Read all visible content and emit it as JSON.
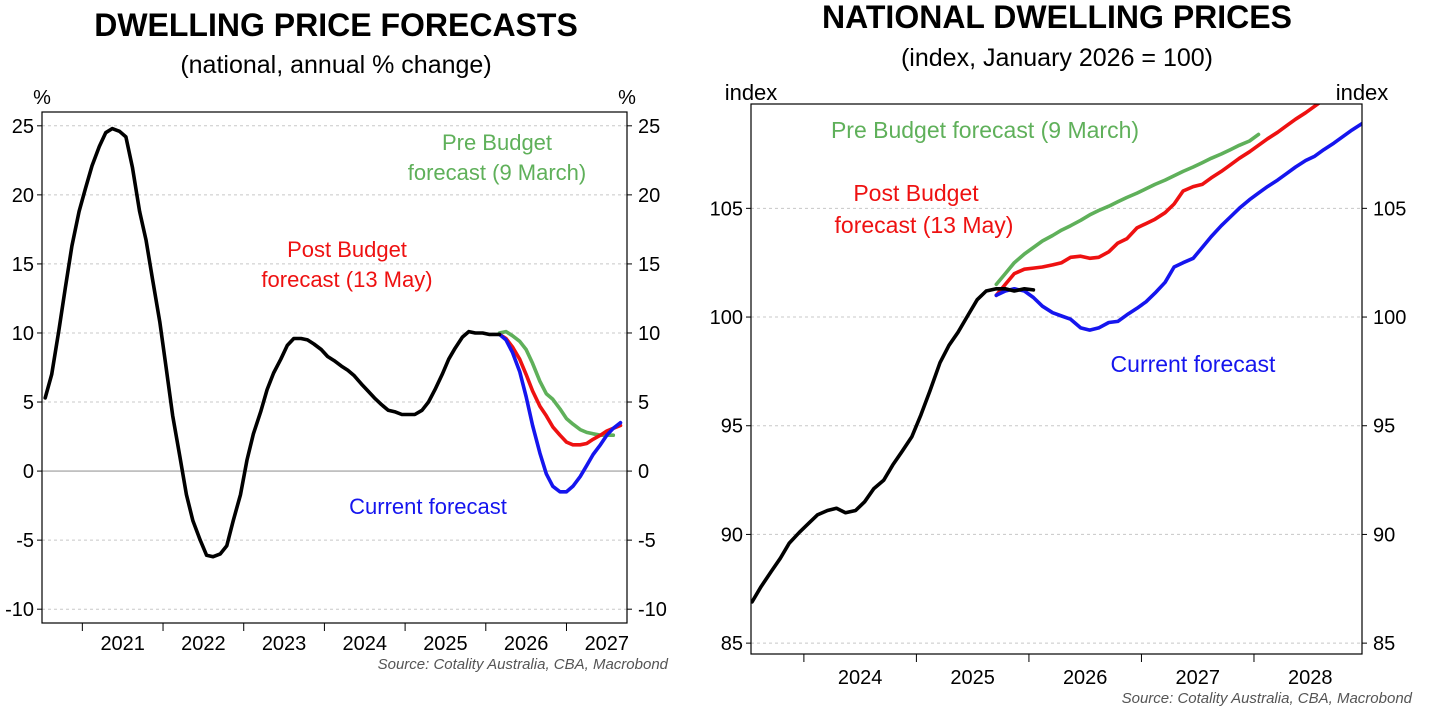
{
  "colors": {
    "black": "#000000",
    "pre_budget": "#5fb05a",
    "post_budget": "#ee1111",
    "current": "#1515ee",
    "source": "#555555"
  },
  "chart_data": [
    {
      "type": "line",
      "title": "DWELLING PRICE FORECASTS",
      "subtitle": "(national, annual % change)",
      "ylabel_left": "%",
      "ylabel_right": "%",
      "ylim": [
        -11,
        26
      ],
      "yticks": [
        -10,
        -5,
        0,
        5,
        10,
        15,
        20,
        25
      ],
      "ytick_labels": [
        "-10",
        "-5",
        "0",
        "5",
        "10",
        "15",
        "20",
        "25"
      ],
      "xlim": [
        2020.5,
        2027.75
      ],
      "xticks": [
        2021,
        2022,
        2023,
        2024,
        2025,
        2026,
        2027
      ],
      "xtick_labels": [
        "2021",
        "2022",
        "2023",
        "2024",
        "2025",
        "2026",
        "2027"
      ],
      "grid": true,
      "zero_line": true,
      "source": "Source: Cotality Australia, CBA, Macrobond",
      "annotations": {
        "pre_budget": [
          "Pre Budget",
          "forecast (9 March)"
        ],
        "post_budget": [
          "Post Budget",
          "forecast (13 May)"
        ],
        "current": [
          "Current forecast"
        ]
      },
      "series": [
        {
          "key": "pre_budget",
          "x": [
            2026.17,
            2026.25,
            2026.33,
            2026.42,
            2026.5,
            2026.58,
            2026.67,
            2026.75,
            2026.83,
            2026.92,
            2027.0,
            2027.08,
            2027.17,
            2027.25,
            2027.33,
            2027.42,
            2027.5,
            2027.58
          ],
          "y": [
            10.0,
            10.1,
            9.8,
            9.4,
            8.8,
            7.8,
            6.5,
            5.6,
            5.2,
            4.5,
            3.8,
            3.4,
            3.0,
            2.8,
            2.7,
            2.6,
            2.6,
            2.6
          ]
        },
        {
          "key": "post_budget",
          "x": [
            2026.17,
            2026.25,
            2026.33,
            2026.42,
            2026.5,
            2026.58,
            2026.67,
            2026.75,
            2026.83,
            2026.92,
            2027.0,
            2027.08,
            2027.17,
            2027.25,
            2027.33,
            2027.42,
            2027.5,
            2027.58,
            2027.67
          ],
          "y": [
            9.9,
            9.6,
            9.0,
            8.1,
            7.0,
            5.8,
            4.7,
            4.0,
            3.2,
            2.6,
            2.1,
            1.9,
            1.9,
            2.0,
            2.3,
            2.6,
            2.9,
            3.1,
            3.3
          ]
        },
        {
          "key": "current",
          "x": [
            2026.17,
            2026.25,
            2026.33,
            2026.42,
            2026.5,
            2026.58,
            2026.67,
            2026.75,
            2026.83,
            2026.92,
            2027.0,
            2027.08,
            2027.17,
            2027.25,
            2027.33,
            2027.42,
            2027.5,
            2027.58,
            2027.67
          ],
          "y": [
            9.9,
            9.5,
            8.6,
            7.2,
            5.4,
            3.3,
            1.3,
            -0.2,
            -1.1,
            -1.5,
            -1.5,
            -1.1,
            -0.4,
            0.4,
            1.2,
            1.9,
            2.6,
            3.1,
            3.5
          ]
        },
        {
          "key": "black",
          "x": [
            2020.54,
            2020.62,
            2020.71,
            2020.79,
            2020.87,
            2020.96,
            2021.04,
            2021.12,
            2021.21,
            2021.29,
            2021.37,
            2021.46,
            2021.54,
            2021.62,
            2021.71,
            2021.79,
            2021.87,
            2021.96,
            2022.04,
            2022.12,
            2022.21,
            2022.29,
            2022.37,
            2022.46,
            2022.54,
            2022.62,
            2022.71,
            2022.79,
            2022.87,
            2022.96,
            2023.04,
            2023.12,
            2023.21,
            2023.29,
            2023.37,
            2023.46,
            2023.54,
            2023.62,
            2023.71,
            2023.79,
            2023.87,
            2023.96,
            2024.04,
            2024.12,
            2024.21,
            2024.29,
            2024.37,
            2024.46,
            2024.54,
            2024.62,
            2024.71,
            2024.79,
            2024.87,
            2024.96,
            2025.04,
            2025.12,
            2025.21,
            2025.29,
            2025.37,
            2025.46,
            2025.54,
            2025.62,
            2025.71,
            2025.79,
            2025.87,
            2025.96,
            2026.04,
            2026.12,
            2026.17
          ],
          "y": [
            5.3,
            7.0,
            10.2,
            13.3,
            16.3,
            18.8,
            20.5,
            22.1,
            23.5,
            24.5,
            24.8,
            24.6,
            24.2,
            22.0,
            18.8,
            16.7,
            13.9,
            10.8,
            7.4,
            4.0,
            1.0,
            -1.7,
            -3.6,
            -5.0,
            -6.1,
            -6.2,
            -6.0,
            -5.4,
            -3.6,
            -1.7,
            0.8,
            2.7,
            4.3,
            5.9,
            7.1,
            8.1,
            9.1,
            9.6,
            9.6,
            9.5,
            9.2,
            8.8,
            8.3,
            8.0,
            7.6,
            7.3,
            6.9,
            6.3,
            5.8,
            5.3,
            4.8,
            4.4,
            4.3,
            4.1,
            4.1,
            4.1,
            4.4,
            5.0,
            5.9,
            7.0,
            8.1,
            8.9,
            9.7,
            10.1,
            10.0,
            10.0,
            9.9,
            9.9,
            9.9
          ]
        }
      ]
    },
    {
      "type": "line",
      "title": "NATIONAL DWELLING PRICES",
      "subtitle": "(index, January 2026 = 100)",
      "ylabel_left": "index",
      "ylabel_right": "index",
      "ylim": [
        84.5,
        109.8
      ],
      "yticks": [
        85,
        90,
        95,
        100,
        105
      ],
      "ytick_labels": [
        "85",
        "90",
        "95",
        "100",
        "105"
      ],
      "xlim": [
        2023.53,
        2028.96
      ],
      "xticks": [
        2024,
        2025,
        2026,
        2027,
        2028
      ],
      "xtick_labels": [
        "2024",
        "2025",
        "2026",
        "2027",
        "2028"
      ],
      "grid": true,
      "source": "Source: Cotality Australia, CBA, Macrobond",
      "annotations": {
        "pre_budget": [
          "Pre Budget forecast (9 March)"
        ],
        "post_budget": [
          "Post Budget",
          "forecast (13 May)"
        ],
        "current": [
          "Current forecast"
        ]
      },
      "series": [
        {
          "key": "pre_budget",
          "x": [
            2025.71,
            2025.79,
            2025.87,
            2025.96,
            2026.04,
            2026.12,
            2026.21,
            2026.29,
            2026.37,
            2026.46,
            2026.54,
            2026.62,
            2026.71,
            2026.79,
            2026.87,
            2026.96,
            2027.04,
            2027.12,
            2027.21,
            2027.29,
            2027.37,
            2027.46,
            2027.54,
            2027.62,
            2027.71,
            2027.79,
            2027.87,
            2027.96,
            2028.04
          ],
          "y": [
            101.5,
            102.0,
            102.5,
            102.9,
            103.2,
            103.5,
            103.75,
            104.0,
            104.2,
            104.45,
            104.7,
            104.9,
            105.1,
            105.3,
            105.5,
            105.7,
            105.9,
            106.1,
            106.3,
            106.5,
            106.7,
            106.9,
            107.1,
            107.3,
            107.5,
            107.7,
            107.9,
            108.1,
            108.4
          ]
        },
        {
          "key": "post_budget",
          "x": [
            2025.71,
            2025.79,
            2025.87,
            2025.96,
            2026.04,
            2026.12,
            2026.21,
            2026.29,
            2026.37,
            2026.46,
            2026.54,
            2026.62,
            2026.71,
            2026.79,
            2026.87,
            2026.96,
            2027.04,
            2027.12,
            2027.21,
            2027.29,
            2027.37,
            2027.46,
            2027.54,
            2027.62,
            2027.71,
            2027.79,
            2027.87,
            2027.96,
            2028.04,
            2028.12,
            2028.21,
            2028.29,
            2028.37,
            2028.46,
            2028.54,
            2028.62,
            2028.71,
            2028.79,
            2028.87,
            2028.96
          ],
          "y": [
            101.0,
            101.5,
            102.0,
            102.2,
            102.25,
            102.3,
            102.4,
            102.5,
            102.75,
            102.8,
            102.7,
            102.75,
            103.0,
            103.4,
            103.6,
            104.1,
            104.3,
            104.5,
            104.8,
            105.2,
            105.8,
            106.0,
            106.1,
            106.4,
            106.7,
            107.0,
            107.3,
            107.6,
            107.9,
            108.2,
            108.5,
            108.8,
            109.1,
            109.4,
            109.7,
            110.0,
            110.3,
            110.6,
            110.9,
            111.2
          ]
        },
        {
          "key": "current",
          "x": [
            2025.71,
            2025.79,
            2025.87,
            2025.96,
            2026.04,
            2026.12,
            2026.21,
            2026.29,
            2026.37,
            2026.46,
            2026.54,
            2026.62,
            2026.71,
            2026.79,
            2026.87,
            2026.96,
            2027.04,
            2027.12,
            2027.21,
            2027.29,
            2027.37,
            2027.46,
            2027.54,
            2027.62,
            2027.71,
            2027.79,
            2027.87,
            2027.96,
            2028.04,
            2028.12,
            2028.21,
            2028.29,
            2028.37,
            2028.46,
            2028.54,
            2028.62,
            2028.71,
            2028.79,
            2028.87,
            2028.96
          ],
          "y": [
            101.0,
            101.2,
            101.3,
            101.2,
            100.9,
            100.5,
            100.2,
            100.05,
            99.9,
            99.5,
            99.4,
            99.5,
            99.75,
            99.8,
            100.1,
            100.4,
            100.7,
            101.1,
            101.6,
            102.3,
            102.5,
            102.7,
            103.2,
            103.7,
            104.2,
            104.6,
            105.0,
            105.4,
            105.7,
            106.0,
            106.3,
            106.6,
            106.9,
            107.2,
            107.4,
            107.7,
            108.0,
            108.3,
            108.6,
            108.9
          ]
        },
        {
          "key": "black",
          "x": [
            2023.54,
            2023.62,
            2023.71,
            2023.79,
            2023.87,
            2023.96,
            2024.04,
            2024.12,
            2024.21,
            2024.29,
            2024.37,
            2024.46,
            2024.54,
            2024.62,
            2024.71,
            2024.79,
            2024.87,
            2024.96,
            2025.04,
            2025.12,
            2025.21,
            2025.29,
            2025.37,
            2025.46,
            2025.54,
            2025.62,
            2025.71,
            2025.79,
            2025.87,
            2025.96,
            2026.04
          ],
          "y": [
            86.9,
            87.6,
            88.3,
            88.9,
            89.6,
            90.1,
            90.5,
            90.9,
            91.1,
            91.2,
            91.0,
            91.1,
            91.5,
            92.1,
            92.5,
            93.2,
            93.8,
            94.5,
            95.5,
            96.6,
            97.9,
            98.7,
            99.3,
            100.1,
            100.8,
            101.2,
            101.3,
            101.3,
            101.2,
            101.3,
            101.25
          ]
        }
      ]
    }
  ]
}
